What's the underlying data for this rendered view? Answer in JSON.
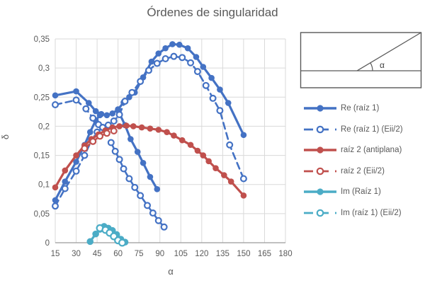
{
  "title": "Órdenes de singularidad",
  "colors": {
    "blue": "#4472C4",
    "red": "#C0504D",
    "cyan": "#4BACC6",
    "text": "#595959",
    "grid": "#D9D9D9",
    "axis_line": "#9B9B9B",
    "inset_stroke": "#595959",
    "background": "#FFFFFF"
  },
  "axes": {
    "x": {
      "label": "α",
      "min": 15,
      "max": 180,
      "ticks": [
        15,
        30,
        45,
        60,
        75,
        90,
        105,
        120,
        135,
        150,
        165,
        180
      ],
      "tick_labels": [
        "15",
        "30",
        "45",
        "60",
        "75",
        "90",
        "105",
        "120",
        "135",
        "150",
        "165",
        "180"
      ]
    },
    "y": {
      "label": "δ",
      "min": 0,
      "max": 0.35,
      "ticks": [
        0,
        0.05,
        0.1,
        0.15,
        0.2,
        0.25,
        0.3,
        0.35
      ],
      "tick_labels": [
        "0",
        "0,05",
        "0,1",
        "0,15",
        "0,2",
        "0,25",
        "0,3",
        "0,35"
      ]
    }
  },
  "inset": {
    "angle_label": "α"
  },
  "chart_data": {
    "type": "line",
    "title": "Órdenes de singularidad",
    "xlabel": "α",
    "ylabel": "δ",
    "x_range": [
      15,
      180
    ],
    "y_range": [
      0,
      0.35
    ],
    "grid": true,
    "legend_position": "right",
    "series": [
      {
        "id": "re-raiz1",
        "name": "Re (raíz 1)",
        "color": "#4472C4",
        "dash": false,
        "marker": "filled",
        "segments": [
          [
            [
              15,
              0.253
            ],
            [
              30,
              0.26
            ],
            [
              39,
              0.24
            ],
            [
              44,
              0.226
            ],
            [
              48,
              0.221
            ],
            [
              52,
              0.219
            ],
            [
              56,
              0.222
            ],
            [
              60,
              0.229
            ]
          ],
          [
            [
              15,
              0.073
            ],
            [
              22,
              0.105
            ],
            [
              30,
              0.139
            ],
            [
              36,
              0.168
            ],
            [
              40,
              0.19
            ],
            [
              44,
              0.21
            ],
            [
              47,
              0.219
            ]
          ],
          [
            [
              60,
              0.229
            ],
            [
              64,
              0.241
            ],
            [
              68,
              0.25
            ],
            [
              72,
              0.258
            ],
            [
              78,
              0.284
            ],
            [
              84,
              0.311
            ],
            [
              89,
              0.325
            ],
            [
              94,
              0.334
            ],
            [
              99,
              0.341
            ],
            [
              104,
              0.34
            ],
            [
              110,
              0.334
            ],
            [
              116,
              0.319
            ],
            [
              121,
              0.302
            ],
            [
              127,
              0.283
            ],
            [
              133,
              0.263
            ],
            [
              139,
              0.24
            ],
            [
              150,
              0.185
            ]
          ],
          [
            [
              60,
              0.227
            ],
            [
              65,
              0.202
            ],
            [
              69,
              0.178
            ],
            [
              74,
              0.156
            ],
            [
              78,
              0.137
            ],
            [
              83,
              0.113
            ],
            [
              88,
              0.092
            ]
          ]
        ]
      },
      {
        "id": "re-raiz1-eii2",
        "name": "Re (raíz 1) (Eii/2)",
        "color": "#4472C4",
        "dash": true,
        "marker": "open",
        "segments": [
          [
            [
              15,
              0.237
            ],
            [
              30,
              0.245
            ],
            [
              37,
              0.23
            ],
            [
              42,
              0.214
            ],
            [
              46,
              0.203
            ],
            [
              49,
              0.198
            ]
          ],
          [
            [
              15,
              0.063
            ],
            [
              22,
              0.093
            ],
            [
              30,
              0.123
            ],
            [
              36,
              0.15
            ],
            [
              41,
              0.176
            ],
            [
              45,
              0.19
            ],
            [
              49,
              0.198
            ]
          ],
          [
            [
              49,
              0.198
            ],
            [
              53,
              0.202
            ],
            [
              57,
              0.209
            ],
            [
              61,
              0.22
            ],
            [
              65,
              0.243
            ],
            [
              70,
              0.258
            ],
            [
              76,
              0.277
            ],
            [
              82,
              0.296
            ],
            [
              88,
              0.308
            ],
            [
              94,
              0.316
            ],
            [
              100,
              0.32
            ],
            [
              106,
              0.318
            ],
            [
              112,
              0.309
            ],
            [
              117,
              0.294
            ],
            [
              123,
              0.27
            ],
            [
              128,
              0.248
            ],
            [
              133,
              0.227
            ],
            [
              140,
              0.168
            ],
            [
              150,
              0.11
            ]
          ],
          [
            [
              55,
              0.172
            ],
            [
              58,
              0.157
            ],
            [
              61,
              0.143
            ],
            [
              64,
              0.127
            ],
            [
              68,
              0.11
            ],
            [
              72,
              0.095
            ],
            [
              76,
              0.081
            ],
            [
              81,
              0.064
            ],
            [
              85,
              0.051
            ],
            [
              89,
              0.038
            ],
            [
              93,
              0.027
            ]
          ]
        ]
      },
      {
        "id": "raiz2-antiplana",
        "name": "raíz 2 (antiplana)",
        "color": "#C0504D",
        "dash": false,
        "marker": "filled",
        "segments": [
          [
            [
              15,
              0.095
            ],
            [
              22,
              0.124
            ],
            [
              30,
              0.15
            ],
            [
              36,
              0.167
            ],
            [
              41,
              0.178
            ],
            [
              46,
              0.186
            ],
            [
              51,
              0.193
            ],
            [
              56,
              0.198
            ],
            [
              61,
              0.2
            ],
            [
              66,
              0.201
            ],
            [
              71,
              0.2
            ],
            [
              77,
              0.198
            ],
            [
              83,
              0.196
            ],
            [
              89,
              0.194
            ],
            [
              95,
              0.19
            ],
            [
              100,
              0.184
            ],
            [
              106,
              0.176
            ],
            [
              112,
              0.168
            ],
            [
              117,
              0.158
            ],
            [
              121,
              0.15
            ],
            [
              125,
              0.14
            ],
            [
              130,
              0.128
            ],
            [
              136,
              0.116
            ],
            [
              141,
              0.105
            ],
            [
              150,
              0.081
            ]
          ]
        ]
      },
      {
        "id": "raiz2-eii2",
        "name": "raíz 2 (Eii/2)",
        "color": "#C0504D",
        "dash": true,
        "marker": "open",
        "segments": [
          [
            [
              36,
              0.162
            ],
            [
              42,
              0.174
            ],
            [
              47,
              0.183
            ],
            [
              52,
              0.188
            ],
            [
              57,
              0.192
            ]
          ]
        ]
      },
      {
        "id": "im-raiz1",
        "name": "Im (Raíz 1)",
        "color": "#4BACC6",
        "dash": false,
        "marker": "filled",
        "segments": [
          [
            [
              40,
              0.002
            ],
            [
              44,
              0.015
            ],
            [
              47,
              0.023
            ],
            [
              50,
              0.028
            ],
            [
              53,
              0.025
            ],
            [
              56,
              0.021
            ],
            [
              59,
              0.014
            ],
            [
              62,
              0.006
            ],
            [
              65,
              0.001
            ]
          ]
        ]
      },
      {
        "id": "im-raiz1-eii2",
        "name": "Im (raíz 1) (Eii/2)",
        "color": "#4BACC6",
        "dash": true,
        "marker": "open",
        "segments": [
          [
            [
              47,
              0.025
            ],
            [
              51,
              0.022
            ],
            [
              54,
              0.017
            ],
            [
              57,
              0.011
            ],
            [
              60,
              0.004
            ],
            [
              63,
              0.0
            ]
          ]
        ]
      }
    ]
  }
}
